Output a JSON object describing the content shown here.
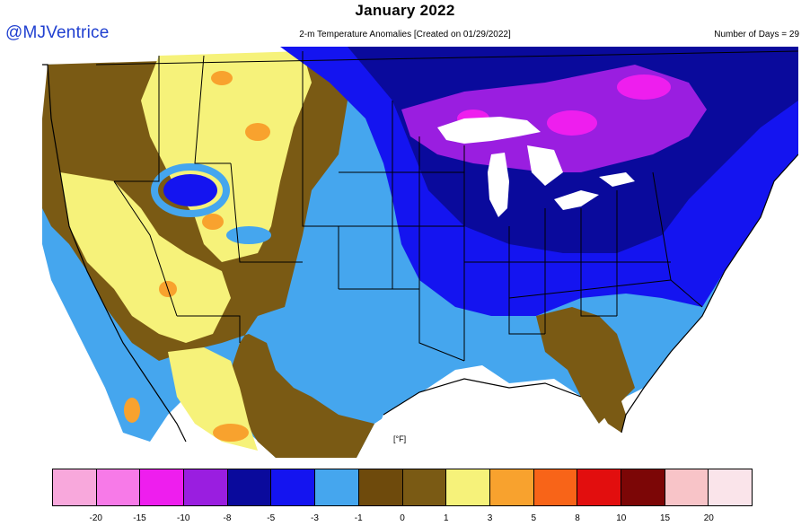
{
  "header": {
    "title": "January 2022",
    "handle": "@MJVentrice",
    "subtitle": "2-m Temperature Anomalies [Created on 01/29/2022]",
    "days": "Number of Days = 29"
  },
  "map": {
    "unit_label": "[°F]"
  },
  "legend": {
    "bins": [
      {
        "color": "#f8a8dc"
      },
      {
        "color": "#f77ae8"
      },
      {
        "color": "#ee1eee"
      },
      {
        "color": "#9a1ee0"
      },
      {
        "color": "#0a0a9c"
      },
      {
        "color": "#1414f0"
      },
      {
        "color": "#45a6ee"
      },
      {
        "color": "#6e4a0c"
      },
      {
        "color": "#7a5a14"
      },
      {
        "color": "#f6f27a"
      },
      {
        "color": "#f8a22e"
      },
      {
        "color": "#f86418"
      },
      {
        "color": "#e20e0e"
      },
      {
        "color": "#7c0606"
      },
      {
        "color": "#f8c4c8"
      },
      {
        "color": "#fae4ea"
      }
    ],
    "ticks": [
      "-20",
      "-15",
      "-10",
      "-8",
      "-5",
      "-3",
      "-1",
      "0",
      "1",
      "3",
      "5",
      "8",
      "10",
      "15",
      "20"
    ]
  }
}
